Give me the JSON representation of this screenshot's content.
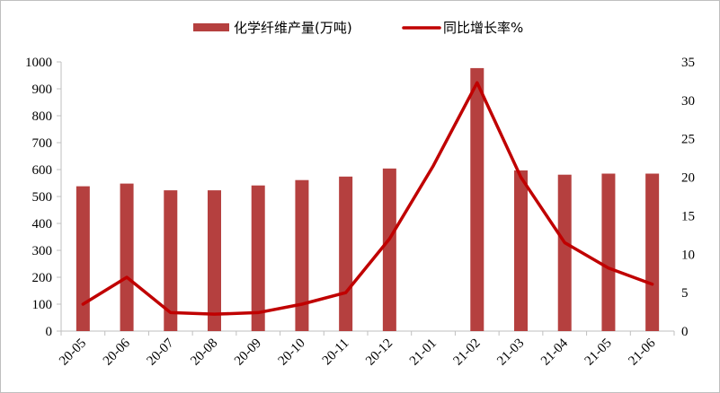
{
  "chart_data": {
    "type": "bar",
    "categories": [
      "20-05",
      "20-06",
      "20-07",
      "20-08",
      "20-09",
      "20-10",
      "20-11",
      "20-12",
      "21-01",
      "21-02",
      "21-03",
      "21-04",
      "21-05",
      "21-06"
    ],
    "series": [
      {
        "name": "化学纤维产量(万吨)",
        "type": "bar",
        "axis": "left",
        "color": "#b5403f",
        "values": [
          538,
          548,
          523,
          523,
          541,
          561,
          574,
          604,
          null,
          977,
          597,
          581,
          585,
          585
        ]
      },
      {
        "name": "同比增长率%",
        "type": "line",
        "axis": "right",
        "color": "#c00000",
        "values": [
          3.5,
          7.0,
          2.4,
          2.2,
          2.4,
          3.5,
          5.0,
          12.0,
          21.5,
          32.3,
          20.0,
          11.5,
          8.2,
          6.1
        ]
      }
    ],
    "y_left": {
      "min": 0,
      "max": 1000,
      "ticks": [
        0,
        100,
        200,
        300,
        400,
        500,
        600,
        700,
        800,
        900,
        1000
      ]
    },
    "y_right": {
      "min": 0,
      "max": 35,
      "ticks": [
        0,
        5,
        10,
        15,
        20,
        25,
        30,
        35
      ]
    },
    "grid": false,
    "legend_position": "top"
  }
}
